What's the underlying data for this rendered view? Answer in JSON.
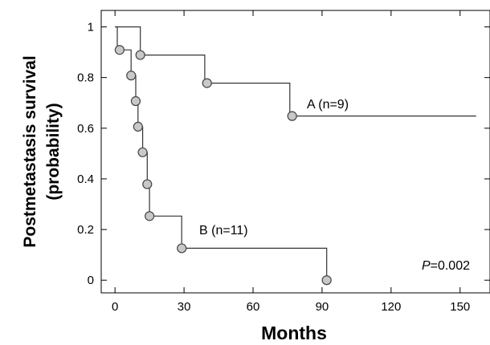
{
  "chart_data": {
    "type": "line",
    "subtype": "kaplan-meier",
    "xlabel": "Months",
    "ylabel_line1": "Postmetastasis survival",
    "ylabel_line2": "(probability)",
    "xlim": [
      -6,
      163
    ],
    "ylim": [
      -0.05,
      1.065
    ],
    "xticks": [
      0,
      30,
      60,
      90,
      120,
      150
    ],
    "yticks": [
      0,
      0.2,
      0.4,
      0.6,
      0.8,
      1
    ],
    "xtick_labels": [
      "0",
      "30",
      "60",
      "90",
      "120",
      "150"
    ],
    "ytick_labels": [
      "0",
      "0.2",
      "0.4",
      "0.6",
      "0.8",
      "1"
    ],
    "grid": false,
    "series": [
      {
        "name": "A (n=9)",
        "step_points": [
          [
            0,
            1
          ],
          [
            11,
            1
          ],
          [
            11,
            0.889
          ],
          [
            39,
            0.889
          ],
          [
            39,
            0.778
          ],
          [
            76,
            0.778
          ],
          [
            76,
            0.648
          ],
          [
            157,
            0.648
          ]
        ],
        "markers": [
          [
            11,
            0.889
          ],
          [
            40,
            0.778
          ],
          [
            77,
            0.648
          ]
        ]
      },
      {
        "name": "B (n=11)",
        "step_points": [
          [
            0,
            1
          ],
          [
            1,
            1
          ],
          [
            1,
            0.909
          ],
          [
            7,
            0.909
          ],
          [
            7,
            0.808
          ],
          [
            9,
            0.808
          ],
          [
            9,
            0.707
          ],
          [
            10,
            0.707
          ],
          [
            10,
            0.606
          ],
          [
            12,
            0.606
          ],
          [
            12,
            0.505
          ],
          [
            14,
            0.505
          ],
          [
            14,
            0.379
          ],
          [
            15,
            0.379
          ],
          [
            15,
            0.253
          ],
          [
            29,
            0.253
          ],
          [
            29,
            0.126
          ],
          [
            92,
            0.126
          ],
          [
            92,
            0
          ]
        ],
        "markers": [
          [
            2,
            0.909
          ],
          [
            7,
            0.808
          ],
          [
            9,
            0.707
          ],
          [
            10,
            0.606
          ],
          [
            12,
            0.505
          ],
          [
            14,
            0.379
          ],
          [
            15,
            0.253
          ],
          [
            29,
            0.126
          ],
          [
            92,
            0
          ]
        ]
      }
    ],
    "annotations": {
      "p_prefix": "P",
      "p_suffix": "=0.002"
    }
  }
}
